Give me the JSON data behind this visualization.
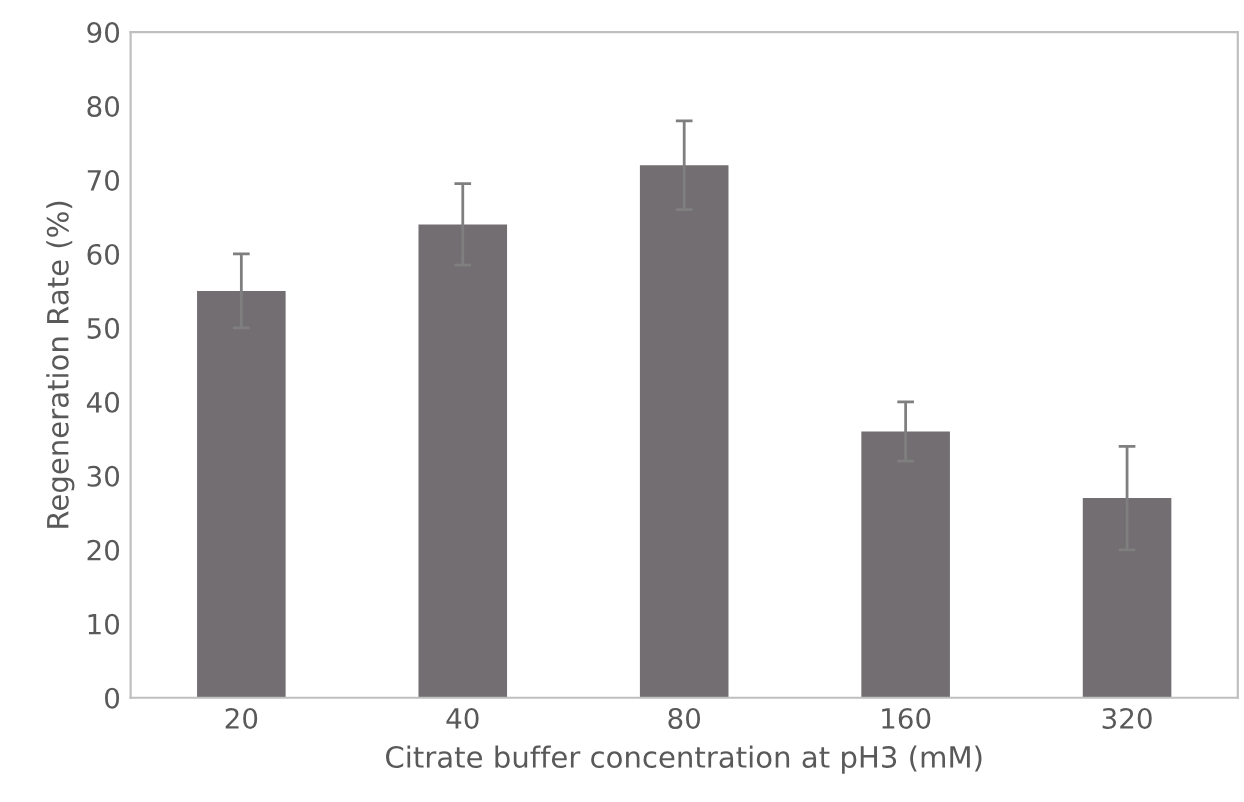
{
  "chart_data": {
    "type": "bar",
    "xlabel": "Citrate buffer concentration at pH3 (mM)",
    "ylabel": "Regeneration Rate (%)",
    "categories": [
      "20",
      "40",
      "80",
      "160",
      "320"
    ],
    "values": [
      55,
      64,
      72,
      36,
      27
    ],
    "errors": [
      5,
      5.5,
      6,
      4,
      7
    ],
    "color": "#736e71",
    "ylim": [
      0,
      90
    ],
    "yticks": [
      0,
      10,
      20,
      30,
      40,
      50,
      60,
      70,
      80,
      90
    ],
    "grid": false,
    "legend": false
  }
}
